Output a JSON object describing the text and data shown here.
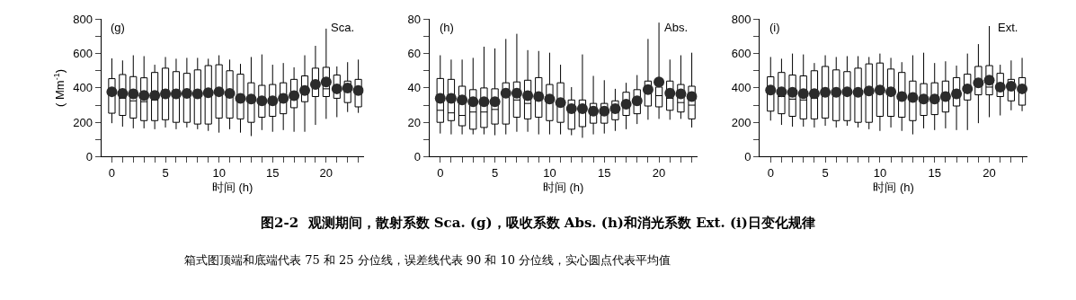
{
  "chart_data": [
    {
      "type": "box",
      "title": "图2-2  观测期间，散射系数 Sca. (g)，吸收系数 Abs. (h)和消光系数 Ext. (i)日变化规律",
      "subtitle": "箱式图顶端和底端代表 75 和 25 分位线，误差线代表 90 和 10 分位线，实心圆点代表平均值",
      "xlabel": "时间 (h)",
      "ylabel": "( Mm$^{-1}$)",
      "annotations": [
        "(g)",
        "Sca."
      ],
      "x": [
        0,
        1,
        2,
        3,
        4,
        5,
        6,
        7,
        8,
        9,
        10,
        11,
        12,
        13,
        14,
        15,
        16,
        17,
        18,
        19,
        20,
        21,
        22,
        23
      ],
      "xlim": [
        -1,
        23.5
      ],
      "xticks": [
        0,
        {
          "value": 1,
          "label": null
        },
        {
          "value": 2,
          "label": null
        },
        {
          "value": 3,
          "label": null
        },
        {
          "value": 4,
          "label": null
        },
        5,
        {
          "value": 6,
          "label": null
        },
        {
          "value": 7,
          "label": null
        },
        {
          "value": 8,
          "label": null
        },
        {
          "value": 9,
          "label": null
        },
        10,
        {
          "value": 11,
          "label": null
        },
        {
          "value": 12,
          "label": null
        },
        {
          "value": 13,
          "label": null
        },
        {
          "value": 14,
          "label": null
        },
        15,
        {
          "value": 16,
          "label": null
        },
        {
          "value": 17,
          "label": null
        },
        {
          "value": 18,
          "label": null
        },
        {
          "value": 19,
          "label": null
        },
        20,
        {
          "value": 21,
          "label": null
        },
        {
          "value": 22,
          "label": null
        },
        {
          "value": 23,
          "label": null
        }
      ],
      "ylim": [
        0,
        800
      ],
      "yticks": [
        0,
        {
          "value": 100,
          "label": null
        },
        200,
        {
          "value": 300,
          "label": null
        },
        400,
        {
          "value": 500,
          "label": null
        },
        600,
        {
          "value": 700,
          "label": null
        },
        800
      ],
      "grid": false,
      "series": [
        {
          "color": "#000000",
          "boxes": [
            {
              "low": 195,
              "q1": 253,
              "median": 370,
              "q3": 454,
              "high": 572
            },
            {
              "low": 175,
              "q1": 240,
              "median": 340,
              "q3": 478,
              "high": 560
            },
            {
              "low": 165,
              "q1": 225,
              "median": 325,
              "q3": 466,
              "high": 590
            },
            {
              "low": 165,
              "q1": 210,
              "median": 320,
              "q3": 459,
              "high": 585
            },
            {
              "low": 160,
              "q1": 210,
              "median": 330,
              "q3": 490,
              "high": 535
            },
            {
              "low": 170,
              "q1": 215,
              "median": 345,
              "q3": 515,
              "high": 580
            },
            {
              "low": 160,
              "q1": 200,
              "median": 350,
              "q3": 495,
              "high": 570
            },
            {
              "low": 170,
              "q1": 200,
              "median": 355,
              "q3": 485,
              "high": 575
            },
            {
              "low": 160,
              "q1": 190,
              "median": 350,
              "q3": 505,
              "high": 575
            },
            {
              "low": 150,
              "q1": 190,
              "median": 360,
              "q3": 530,
              "high": 570
            },
            {
              "low": 140,
              "q1": 225,
              "median": 365,
              "q3": 535,
              "high": 590
            },
            {
              "low": 160,
              "q1": 225,
              "median": 355,
              "q3": 500,
              "high": 565
            },
            {
              "low": 140,
              "q1": 220,
              "median": 330,
              "q3": 480,
              "high": 540
            },
            {
              "low": 120,
              "q1": 200,
              "median": 320,
              "q3": 430,
              "high": 580
            },
            {
              "low": 155,
              "q1": 230,
              "median": 315,
              "q3": 415,
              "high": 595
            },
            {
              "low": 145,
              "q1": 235,
              "median": 315,
              "q3": 420,
              "high": 535
            },
            {
              "low": 155,
              "q1": 250,
              "median": 330,
              "q3": 430,
              "high": 545
            },
            {
              "low": 145,
              "q1": 285,
              "median": 345,
              "q3": 450,
              "high": 520
            },
            {
              "low": 145,
              "q1": 320,
              "median": 375,
              "q3": 470,
              "high": 590
            },
            {
              "low": 185,
              "q1": 350,
              "median": 405,
              "q3": 515,
              "high": 645
            },
            {
              "low": 220,
              "q1": 350,
              "median": 395,
              "q3": 520,
              "high": 745
            },
            {
              "low": 230,
              "q1": 340,
              "median": 385,
              "q3": 475,
              "high": 525
            },
            {
              "low": 260,
              "q1": 315,
              "median": 390,
              "q3": 440,
              "high": 550
            },
            {
              "low": 255,
              "q1": 290,
              "median": 375,
              "q3": 450,
              "high": 565
            }
          ]
        },
        {
          "type": "scatter",
          "color": "#2b2b2b",
          "marker": "circle",
          "values": [
            378,
            368,
            365,
            357,
            357,
            365,
            365,
            368,
            365,
            372,
            378,
            368,
            340,
            335,
            325,
            325,
            340,
            355,
            385,
            420,
            435,
            395,
            400,
            385
          ]
        }
      ]
    },
    {
      "type": "box",
      "xlabel": "时间 (h)",
      "annotations": [
        "(h)",
        "Abs."
      ],
      "x": [
        0,
        1,
        2,
        3,
        4,
        5,
        6,
        7,
        8,
        9,
        10,
        11,
        12,
        13,
        14,
        15,
        16,
        17,
        18,
        19,
        20,
        21,
        22,
        23
      ],
      "xlim": [
        -1,
        23.5
      ],
      "xticks": [
        0,
        {
          "value": 1,
          "label": null
        },
        {
          "value": 2,
          "label": null
        },
        {
          "value": 3,
          "label": null
        },
        {
          "value": 4,
          "label": null
        },
        5,
        {
          "value": 6,
          "label": null
        },
        {
          "value": 7,
          "label": null
        },
        {
          "value": 8,
          "label": null
        },
        {
          "value": 9,
          "label": null
        },
        10,
        {
          "value": 11,
          "label": null
        },
        {
          "value": 12,
          "label": null
        },
        {
          "value": 13,
          "label": null
        },
        {
          "value": 14,
          "label": null
        },
        15,
        {
          "value": 16,
          "label": null
        },
        {
          "value": 17,
          "label": null
        },
        {
          "value": 18,
          "label": null
        },
        {
          "value": 19,
          "label": null
        },
        20,
        {
          "value": 21,
          "label": null
        },
        {
          "value": 22,
          "label": null
        },
        {
          "value": 23,
          "label": null
        }
      ],
      "ylim": [
        0,
        80
      ],
      "yticks": [
        0,
        {
          "value": 10,
          "label": null
        },
        20,
        {
          "value": 30,
          "label": null
        },
        40,
        {
          "value": 50,
          "label": null
        },
        60,
        {
          "value": 70,
          "label": null
        },
        80
      ],
      "grid": false,
      "series": [
        {
          "color": "#000000",
          "boxes": [
            {
              "low": 13.5,
              "q1": 20,
              "median": 27,
              "q3": 45.5,
              "high": 59
            },
            {
              "low": 13,
              "q1": 21,
              "median": 25.5,
              "q3": 45,
              "high": 56.5
            },
            {
              "low": 13,
              "q1": 18,
              "median": 24,
              "q3": 41,
              "high": 56.5
            },
            {
              "low": 13,
              "q1": 16,
              "median": 26,
              "q3": 39,
              "high": 57.5
            },
            {
              "low": 13,
              "q1": 17,
              "median": 26,
              "q3": 40,
              "high": 64
            },
            {
              "low": 12.5,
              "q1": 19,
              "median": 27.5,
              "q3": 39.5,
              "high": 63
            },
            {
              "low": 13,
              "q1": 19,
              "median": 36,
              "q3": 43,
              "high": 68.5
            },
            {
              "low": 14.5,
              "q1": 23,
              "median": 33,
              "q3": 43.5,
              "high": 71.5
            },
            {
              "low": 14.5,
              "q1": 22,
              "median": 31,
              "q3": 44.5,
              "high": 62
            },
            {
              "low": 13,
              "q1": 23,
              "median": 33,
              "q3": 46,
              "high": 61.5
            },
            {
              "low": 13,
              "q1": 21,
              "median": 33,
              "q3": 42,
              "high": 60.5
            },
            {
              "low": 13,
              "q1": 20,
              "median": 31,
              "q3": 43,
              "high": 53.5
            },
            {
              "low": 12.5,
              "q1": 16,
              "median": 28,
              "q3": 33,
              "high": 40.5
            },
            {
              "low": 11,
              "q1": 17.5,
              "median": 27,
              "q3": 33,
              "high": 59.5
            },
            {
              "low": 13,
              "q1": 19.5,
              "median": 25,
              "q3": 31,
              "high": 47
            },
            {
              "low": 13.5,
              "q1": 19.5,
              "median": 26,
              "q3": 31,
              "high": 44.5
            },
            {
              "low": 15,
              "q1": 21.5,
              "median": 27,
              "q3": 32.5,
              "high": 39.5
            },
            {
              "low": 16,
              "q1": 24,
              "median": 30,
              "q3": 37.5,
              "high": 43
            },
            {
              "low": 19,
              "q1": 25,
              "median": 31,
              "q3": 39,
              "high": 47.5
            },
            {
              "low": 21.5,
              "q1": 29.5,
              "median": 38,
              "q3": 44,
              "high": 68.5
            },
            {
              "low": 22,
              "q1": 29,
              "median": 35.5,
              "q3": 40.5,
              "high": 78
            },
            {
              "low": 21.5,
              "q1": 27,
              "median": 34,
              "q3": 44,
              "high": 56.5
            },
            {
              "low": 22,
              "q1": 26,
              "median": 31.5,
              "q3": 42,
              "high": 59
            },
            {
              "low": 17,
              "q1": 22,
              "median": 30,
              "q3": 41,
              "high": 60.5
            }
          ]
        },
        {
          "type": "scatter",
          "color": "#2b2b2b",
          "marker": "circle",
          "values": [
            34,
            34,
            33,
            32,
            32,
            32,
            37,
            37,
            35.5,
            35,
            33.5,
            31.5,
            28,
            28,
            26.5,
            26.5,
            28,
            30.5,
            32.5,
            39,
            43.5,
            37,
            36.5,
            35
          ]
        }
      ]
    },
    {
      "type": "box",
      "xlabel": "时间 (h)",
      "annotations": [
        "(i)",
        "Ext."
      ],
      "x": [
        0,
        1,
        2,
        3,
        4,
        5,
        6,
        7,
        8,
        9,
        10,
        11,
        12,
        13,
        14,
        15,
        16,
        17,
        18,
        19,
        20,
        21,
        22,
        23
      ],
      "xlim": [
        -1,
        23.5
      ],
      "xticks": [
        0,
        {
          "value": 1,
          "label": null
        },
        {
          "value": 2,
          "label": null
        },
        {
          "value": 3,
          "label": null
        },
        {
          "value": 4,
          "label": null
        },
        5,
        {
          "value": 6,
          "label": null
        },
        {
          "value": 7,
          "label": null
        },
        {
          "value": 8,
          "label": null
        },
        {
          "value": 9,
          "label": null
        },
        10,
        {
          "value": 11,
          "label": null
        },
        {
          "value": 12,
          "label": null
        },
        {
          "value": 13,
          "label": null
        },
        {
          "value": 14,
          "label": null
        },
        15,
        {
          "value": 16,
          "label": null
        },
        {
          "value": 17,
          "label": null
        },
        {
          "value": 18,
          "label": null
        },
        {
          "value": 19,
          "label": null
        },
        20,
        {
          "value": 21,
          "label": null
        },
        {
          "value": 22,
          "label": null
        },
        {
          "value": 23,
          "label": null
        }
      ],
      "ylim": [
        0,
        800
      ],
      "yticks": [
        0,
        {
          "value": 100,
          "label": null
        },
        200,
        {
          "value": 300,
          "label": null
        },
        400,
        {
          "value": 500,
          "label": null
        },
        600,
        {
          "value": 700,
          "label": null
        },
        800
      ],
      "grid": false,
      "series": [
        {
          "color": "#000000",
          "boxes": [
            {
              "low": 210,
              "q1": 265,
              "median": 380,
              "q3": 465,
              "high": 580
            },
            {
              "low": 185,
              "q1": 250,
              "median": 350,
              "q3": 490,
              "high": 570
            },
            {
              "low": 175,
              "q1": 235,
              "median": 335,
              "q3": 475,
              "high": 600
            },
            {
              "low": 175,
              "q1": 220,
              "median": 330,
              "q3": 470,
              "high": 595
            },
            {
              "low": 170,
              "q1": 220,
              "median": 340,
              "q3": 500,
              "high": 545
            },
            {
              "low": 180,
              "q1": 225,
              "median": 355,
              "q3": 525,
              "high": 590
            },
            {
              "low": 170,
              "q1": 210,
              "median": 360,
              "q3": 505,
              "high": 580
            },
            {
              "low": 180,
              "q1": 210,
              "median": 365,
              "q3": 495,
              "high": 585
            },
            {
              "low": 170,
              "q1": 200,
              "median": 360,
              "q3": 515,
              "high": 585
            },
            {
              "low": 160,
              "q1": 200,
              "median": 370,
              "q3": 540,
              "high": 580
            },
            {
              "low": 150,
              "q1": 235,
              "median": 375,
              "q3": 545,
              "high": 600
            },
            {
              "low": 170,
              "q1": 235,
              "median": 365,
              "q3": 510,
              "high": 575
            },
            {
              "low": 150,
              "q1": 230,
              "median": 340,
              "q3": 490,
              "high": 550
            },
            {
              "low": 130,
              "q1": 210,
              "median": 330,
              "q3": 440,
              "high": 590
            },
            {
              "low": 165,
              "q1": 240,
              "median": 325,
              "q3": 425,
              "high": 605
            },
            {
              "low": 155,
              "q1": 245,
              "median": 325,
              "q3": 430,
              "high": 545
            },
            {
              "low": 165,
              "q1": 260,
              "median": 340,
              "q3": 440,
              "high": 555
            },
            {
              "low": 155,
              "q1": 295,
              "median": 355,
              "q3": 460,
              "high": 530
            },
            {
              "low": 155,
              "q1": 330,
              "median": 385,
              "q3": 480,
              "high": 600
            },
            {
              "low": 195,
              "q1": 360,
              "median": 415,
              "q3": 525,
              "high": 655
            },
            {
              "low": 230,
              "q1": 360,
              "median": 405,
              "q3": 530,
              "high": 760
            },
            {
              "low": 240,
              "q1": 350,
              "median": 395,
              "q3": 485,
              "high": 535
            },
            {
              "low": 270,
              "q1": 325,
              "median": 400,
              "q3": 450,
              "high": 560
            },
            {
              "low": 265,
              "q1": 300,
              "median": 385,
              "q3": 460,
              "high": 575
            }
          ]
        },
        {
          "type": "scatter",
          "color": "#2b2b2b",
          "marker": "circle",
          "values": [
            388,
            378,
            375,
            367,
            367,
            375,
            375,
            378,
            375,
            382,
            388,
            378,
            350,
            345,
            335,
            335,
            350,
            365,
            395,
            430,
            445,
            405,
            410,
            395
          ]
        }
      ]
    }
  ]
}
